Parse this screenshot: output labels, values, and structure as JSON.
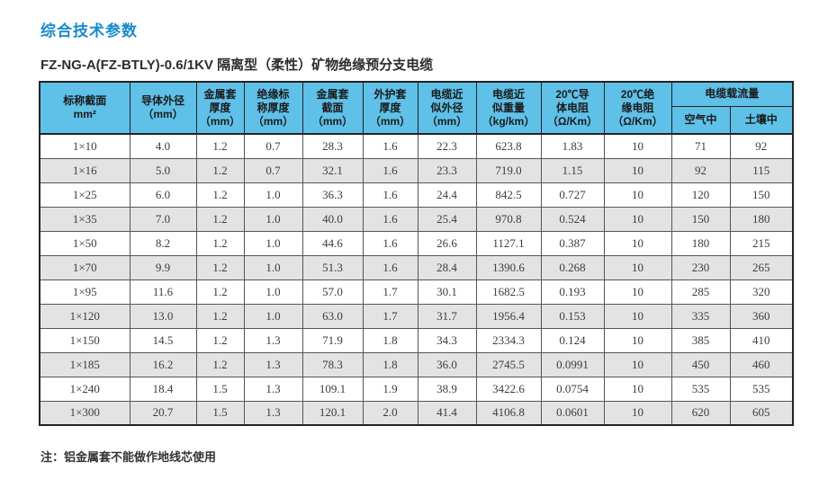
{
  "page": {
    "title": "综合技术参数",
    "subtitle": "FZ-NG-A(FZ-BTLY)-0.6/1KV 隔离型（柔性）矿物绝缘预分支电缆",
    "note": "注：铝金属套不能做作地线芯使用"
  },
  "colors": {
    "title_blue": "#1a8ccc",
    "table_header_bg": "#5fc0e8",
    "row_alt_gray": "#e3e3e3",
    "border_dark": "#232323"
  },
  "table": {
    "header": {
      "cols": [
        "标称截面\nmm²",
        "导体外径\n（mm）",
        "金属套\n厚度\n（mm）",
        "绝缘标\n称厚度\n（mm）",
        "金属套\n截面\n（mm）",
        "外护套\n厚度\n（mm）",
        "电缆近\n似外径\n（mm）",
        "电缆近\n似重量\n（kg/km）",
        "20℃导\n体电阻\n（Ω/Km）",
        "20℃绝\n缘电阻\n（Ω/Km）"
      ],
      "group": "电缆载流量",
      "subcols": [
        "空气中",
        "土壤中"
      ]
    },
    "rows": [
      [
        "1×10",
        "4.0",
        "1.2",
        "0.7",
        "28.3",
        "1.6",
        "22.3",
        "623.8",
        "1.83",
        "10",
        "71",
        "92"
      ],
      [
        "1×16",
        "5.0",
        "1.2",
        "0.7",
        "32.1",
        "1.6",
        "23.3",
        "719.0",
        "1.15",
        "10",
        "92",
        "115"
      ],
      [
        "1×25",
        "6.0",
        "1.2",
        "1.0",
        "36.3",
        "1.6",
        "24.4",
        "842.5",
        "0.727",
        "10",
        "120",
        "150"
      ],
      [
        "1×35",
        "7.0",
        "1.2",
        "1.0",
        "40.0",
        "1.6",
        "25.4",
        "970.8",
        "0.524",
        "10",
        "150",
        "180"
      ],
      [
        "1×50",
        "8.2",
        "1.2",
        "1.0",
        "44.6",
        "1.6",
        "26.6",
        "1127.1",
        "0.387",
        "10",
        "180",
        "215"
      ],
      [
        "1×70",
        "9.9",
        "1.2",
        "1.0",
        "51.3",
        "1.6",
        "28.4",
        "1390.6",
        "0.268",
        "10",
        "230",
        "265"
      ],
      [
        "1×95",
        "11.6",
        "1.2",
        "1.0",
        "57.0",
        "1.7",
        "30.1",
        "1682.5",
        "0.193",
        "10",
        "285",
        "320"
      ],
      [
        "1×120",
        "13.0",
        "1.2",
        "1.0",
        "63.0",
        "1.7",
        "31.7",
        "1956.4",
        "0.153",
        "10",
        "335",
        "360"
      ],
      [
        "1×150",
        "14.5",
        "1.2",
        "1.3",
        "71.9",
        "1.8",
        "34.3",
        "2334.3",
        "0.124",
        "10",
        "385",
        "410"
      ],
      [
        "1×185",
        "16.2",
        "1.2",
        "1.3",
        "78.3",
        "1.8",
        "36.0",
        "2745.5",
        "0.0991",
        "10",
        "450",
        "460"
      ],
      [
        "1×240",
        "18.4",
        "1.5",
        "1.3",
        "109.1",
        "1.9",
        "38.9",
        "3422.6",
        "0.0754",
        "10",
        "535",
        "535"
      ],
      [
        "1×300",
        "20.7",
        "1.5",
        "1.3",
        "120.1",
        "2.0",
        "41.4",
        "4106.8",
        "0.0601",
        "10",
        "620",
        "605"
      ]
    ]
  }
}
